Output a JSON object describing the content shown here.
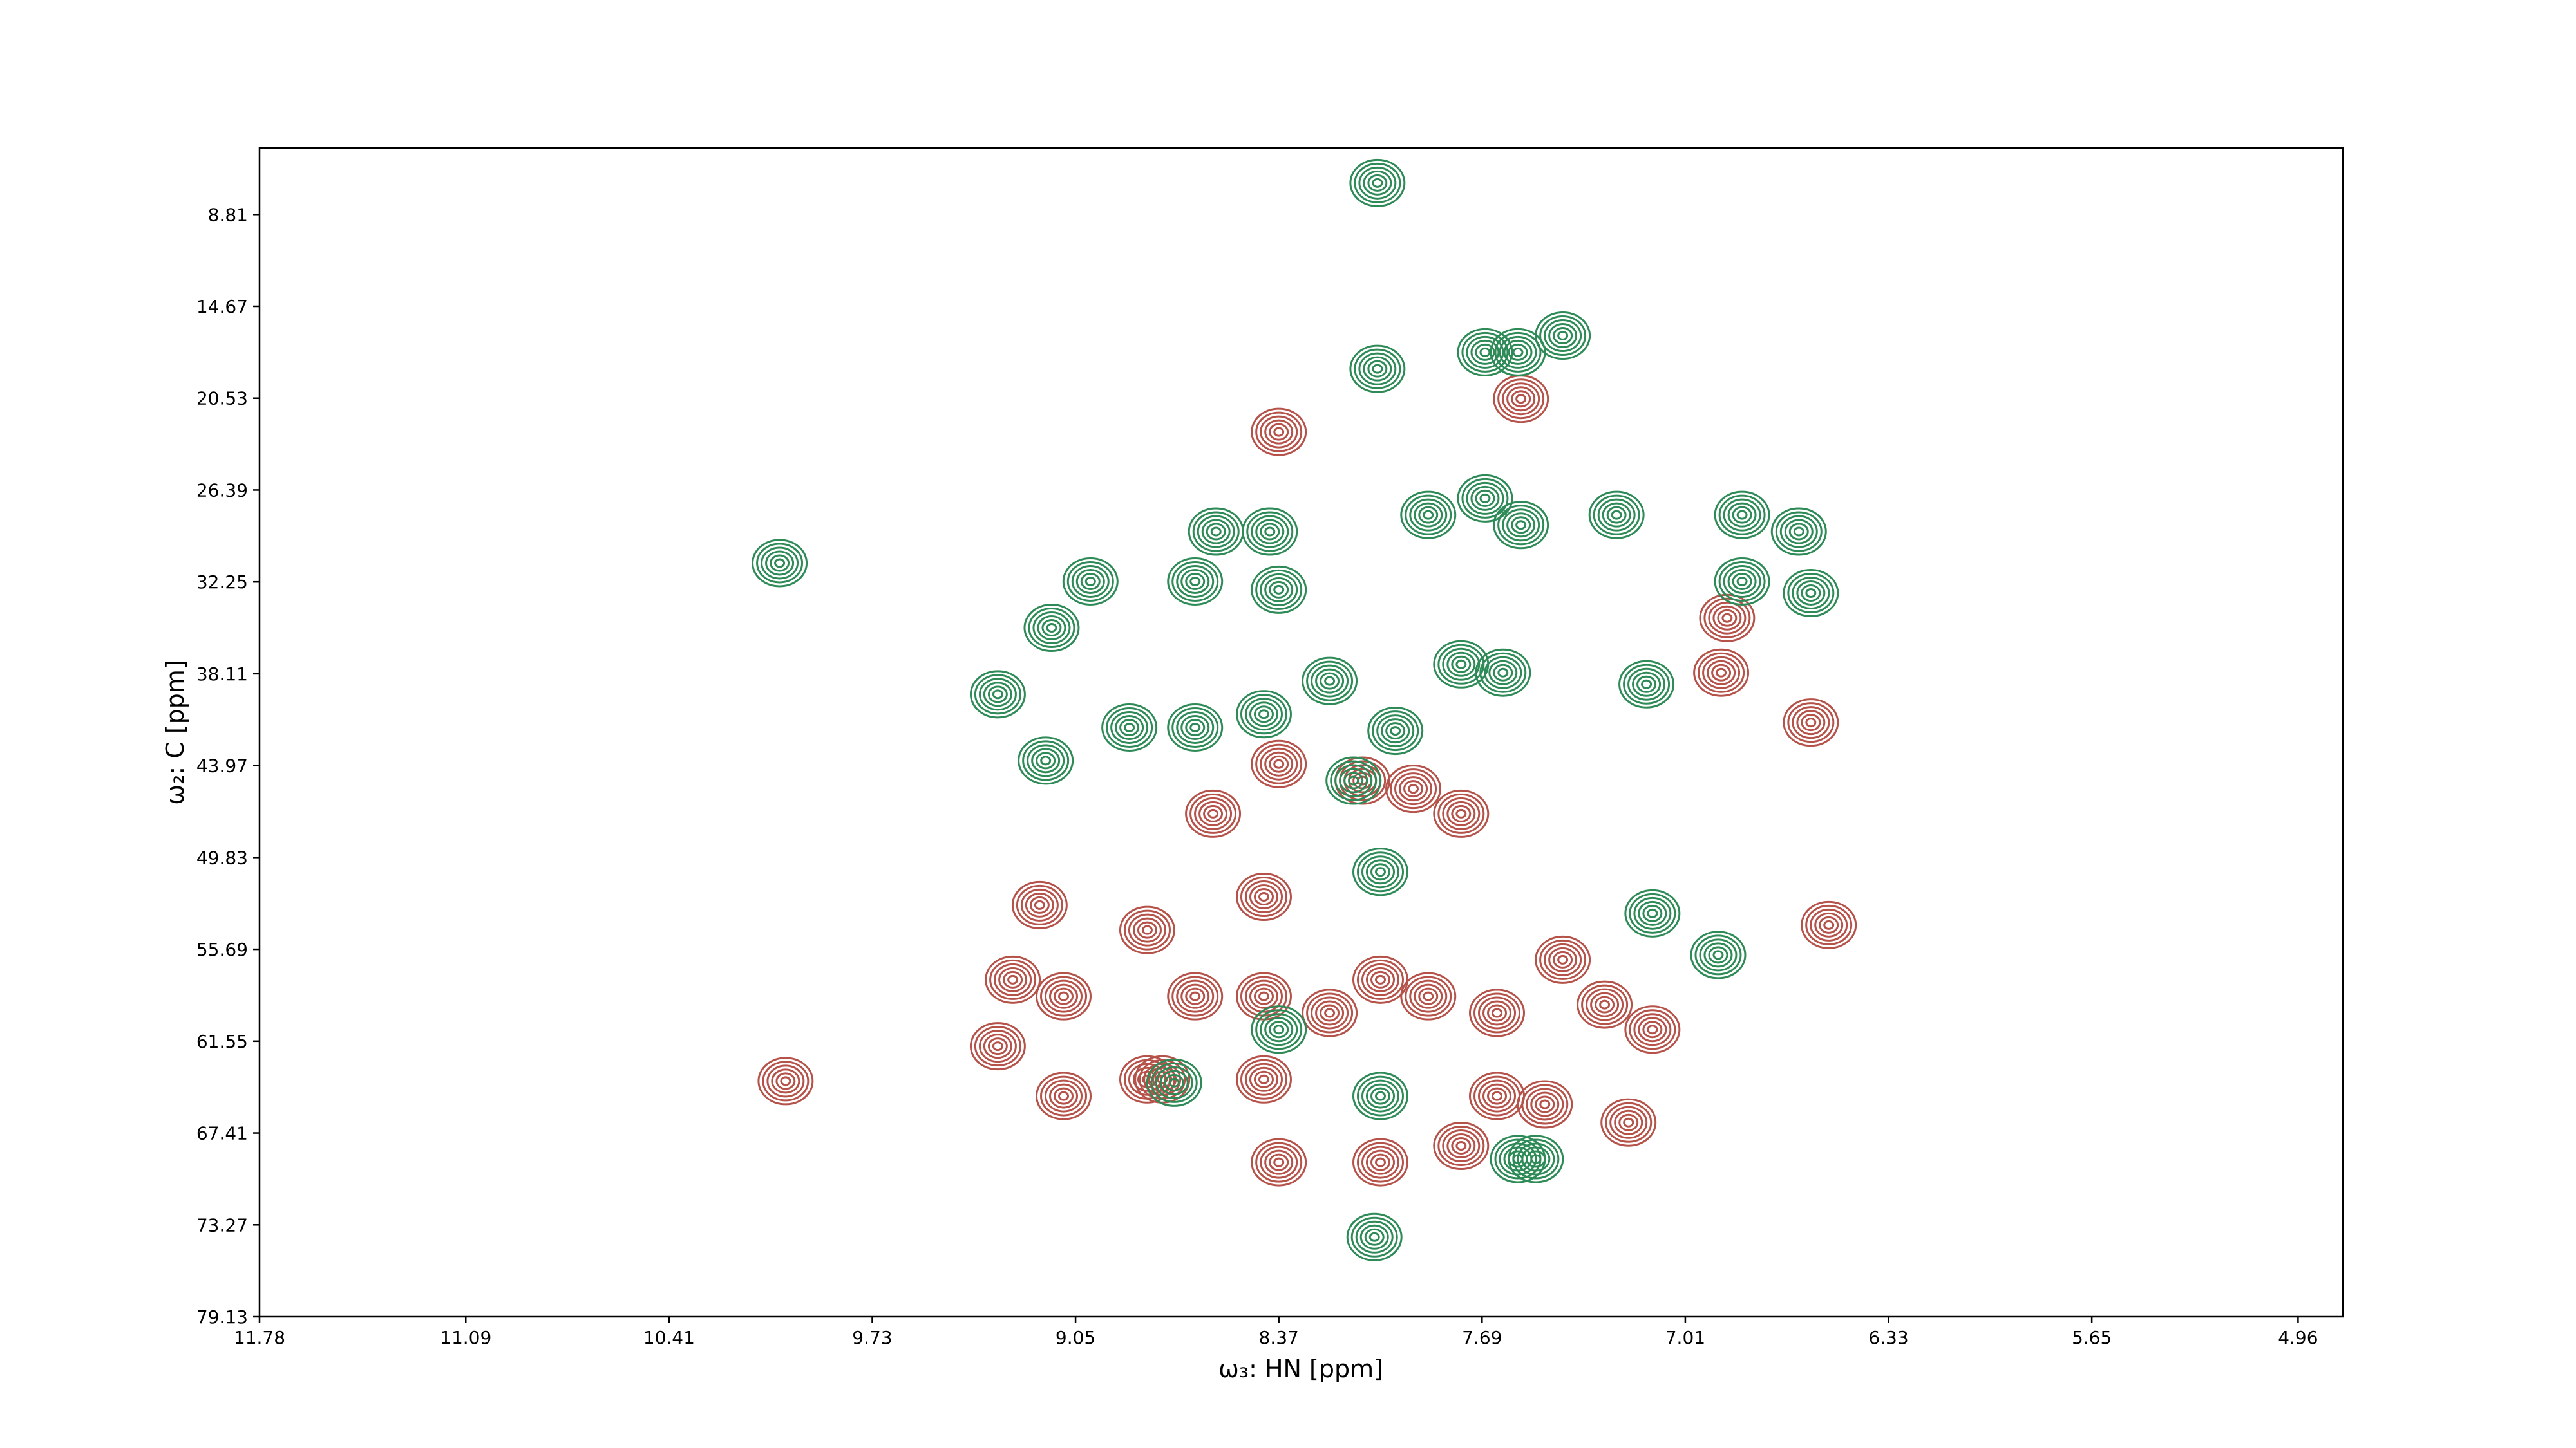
{
  "chart_data": {
    "type": "contour",
    "x_label": "ω₃: HN [ppm]",
    "y_label": "ω₂: C [ppm]",
    "xlim": [
      11.78,
      4.81
    ],
    "ylim": [
      79.13,
      4.57
    ],
    "xticks": [
      11.78,
      11.09,
      10.41,
      9.73,
      9.05,
      8.37,
      7.69,
      7.01,
      6.33,
      5.65,
      4.96
    ],
    "yticks": [
      8.81,
      14.67,
      20.53,
      26.39,
      32.25,
      38.11,
      43.97,
      49.83,
      55.69,
      61.55,
      67.41,
      73.27,
      79.13
    ],
    "grid": false,
    "series": [
      {
        "color": "#b5524a",
        "x": [
          10.02,
          9.31,
          9.17,
          9.09,
          8.81,
          8.65,
          8.42,
          8.42,
          8.2,
          8.03,
          7.87,
          7.64,
          7.42,
          7.28,
          7.12,
          7.2,
          6.53,
          6.87,
          6.89,
          6.59,
          8.37,
          8.09,
          7.92,
          7.76,
          8.59,
          9.09,
          8.81,
          8.42,
          7.64,
          7.48,
          8.37,
          7.56,
          8.03,
          8.37,
          7.76,
          9.26,
          8.76
        ],
        "y": [
          64.1,
          61.87,
          52.87,
          58.69,
          54.46,
          58.69,
          52.34,
          58.69,
          59.75,
          57.63,
          58.69,
          59.75,
          56.36,
          59.22,
          60.81,
          66.74,
          54.14,
          34.55,
          38.04,
          41.22,
          43.87,
          44.93,
          45.45,
          47.04,
          47.04,
          65.05,
          63.99,
          63.99,
          65.05,
          65.58,
          22.68,
          20.57,
          69.28,
          69.28,
          68.23,
          57.63,
          63.99
        ]
      },
      {
        "color": "#2e8b57",
        "x": [
          10.04,
          8.04,
          8.04,
          7.57,
          7.68,
          8.58,
          8.4,
          7.87,
          7.68,
          7.24,
          7.56,
          6.82,
          6.63,
          6.82,
          6.59,
          9.0,
          9.13,
          9.31,
          9.15,
          8.87,
          8.65,
          8.42,
          8.2,
          7.98,
          7.76,
          7.62,
          7.14,
          8.12,
          8.03,
          8.03,
          7.57,
          7.51,
          8.05,
          6.9,
          8.72,
          8.37,
          8.65,
          7.42,
          8.37,
          7.12
        ],
        "y": [
          31.05,
          6.8,
          18.66,
          17.6,
          17.6,
          29.04,
          29.04,
          27.98,
          26.92,
          27.98,
          28.62,
          27.98,
          29.04,
          32.22,
          32.96,
          32.22,
          35.18,
          39.42,
          43.65,
          41.54,
          41.54,
          40.69,
          38.57,
          41.75,
          37.51,
          38.04,
          38.78,
          44.93,
          50.75,
          65.05,
          69.07,
          69.07,
          74.05,
          56.05,
          64.2,
          60.81,
          32.22,
          16.54,
          32.75,
          53.4
        ]
      }
    ]
  }
}
